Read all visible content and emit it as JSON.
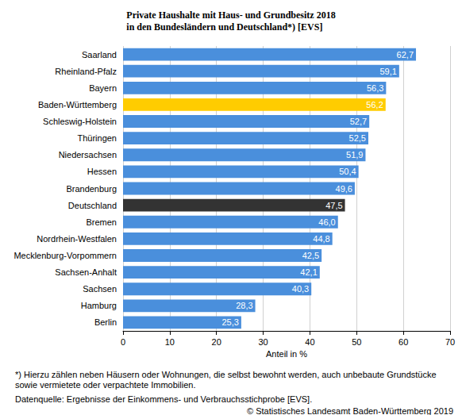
{
  "chart_data": {
    "type": "bar",
    "orientation": "horizontal",
    "title": "Private Haushalte mit Haus- und Grundbesitz 2018\nin den Bundesländern und Deutschland*) [EVS]",
    "xlabel": "Anteil in %",
    "categories": [
      "Saarland",
      "Rheinland-Pfalz",
      "Bayern",
      "Baden-Württemberg",
      "Schleswig-Holstein",
      "Thüringen",
      "Niedersachsen",
      "Hessen",
      "Brandenburg",
      "Deutschland",
      "Bremen",
      "Nordrhein-Westfalen",
      "Mecklenburg-Vorpommern",
      "Sachsen-Anhalt",
      "Sachsen",
      "Hamburg",
      "Berlin"
    ],
    "values": [
      62.7,
      59.1,
      56.3,
      56.2,
      52.7,
      52.5,
      51.9,
      50.4,
      49.6,
      47.5,
      46.0,
      44.8,
      42.5,
      42.1,
      40.3,
      28.3,
      25.3
    ],
    "value_labels": [
      "62,7",
      "59,1",
      "56,3",
      "56,2",
      "52,7",
      "52,5",
      "51,9",
      "50,4",
      "49,6",
      "47,5",
      "46,0",
      "44,8",
      "42,5",
      "42,1",
      "40,3",
      "28,3",
      "25,3"
    ],
    "colors": [
      "#4a8fdc",
      "#4a8fdc",
      "#4a8fdc",
      "#ffcc00",
      "#4a8fdc",
      "#4a8fdc",
      "#4a8fdc",
      "#4a8fdc",
      "#4a8fdc",
      "#333333",
      "#4a8fdc",
      "#4a8fdc",
      "#4a8fdc",
      "#4a8fdc",
      "#4a8fdc",
      "#4a8fdc",
      "#4a8fdc"
    ],
    "xlim": [
      0,
      70
    ],
    "xticks": [
      0,
      10,
      20,
      30,
      40,
      50,
      60,
      70
    ],
    "grid": true,
    "data_labels": true,
    "annotations": [
      "*) Hierzu zählen neben Häusern oder Wohnungen, die selbst bewohnt werden, auch unbebaute Grundstücke sowie vermietete oder verpachtete Immobilien.",
      "Datenquelle: Ergebnisse der Einkommens- und Verbrauchsstichprobe [EVS].",
      "© Statistisches Landesamt Baden-Württemberg 2019"
    ]
  }
}
